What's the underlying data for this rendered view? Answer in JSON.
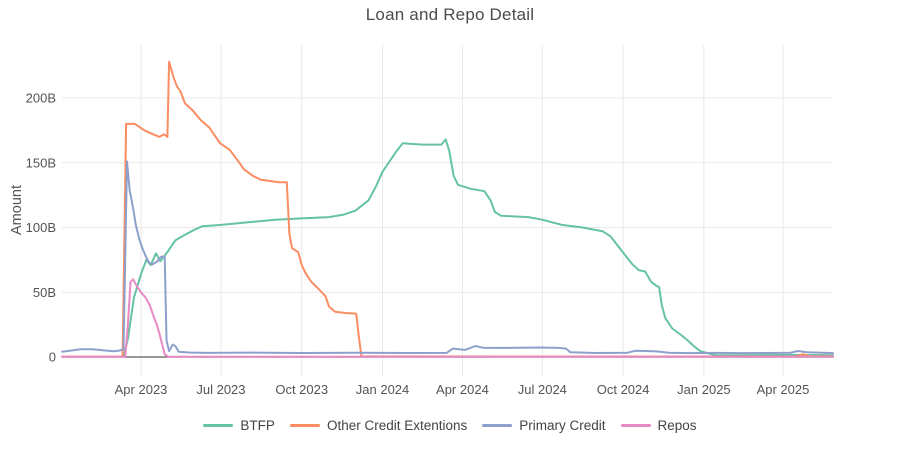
{
  "chart_data": {
    "type": "line",
    "title": "Loan and Repo Detail",
    "xlabel": "",
    "ylabel": "Amount",
    "legend_position": "bottom-center",
    "grid": true,
    "grid_color": "#e9e9e9",
    "zero_line_color": "#5a5a5a",
    "x_range": [
      "2023-01-01",
      "2025-05-28"
    ],
    "y_range": [
      0,
      240
    ],
    "y_ticks": [
      {
        "value": 0,
        "label": "0"
      },
      {
        "value": 50,
        "label": "50B"
      },
      {
        "value": 100,
        "label": "100B"
      },
      {
        "value": 150,
        "label": "150B"
      },
      {
        "value": 200,
        "label": "200B"
      }
    ],
    "x_ticks": [
      {
        "date": "2023-04-01",
        "label": "Apr 2023"
      },
      {
        "date": "2023-07-01",
        "label": "Jul 2023"
      },
      {
        "date": "2023-10-01",
        "label": "Oct 2023"
      },
      {
        "date": "2024-01-01",
        "label": "Jan 2024"
      },
      {
        "date": "2024-04-01",
        "label": "Apr 2024"
      },
      {
        "date": "2024-07-01",
        "label": "Jul 2024"
      },
      {
        "date": "2024-10-01",
        "label": "Oct 2024"
      },
      {
        "date": "2025-01-01",
        "label": "Jan 2025"
      },
      {
        "date": "2025-04-01",
        "label": "Apr 2025"
      }
    ],
    "series": [
      {
        "name": "BTFP",
        "color": "#66c2a5",
        "points": [
          [
            "2023-03-12",
            0
          ],
          [
            "2023-03-17",
            14
          ],
          [
            "2023-03-24",
            46
          ],
          [
            "2023-04-01",
            64
          ],
          [
            "2023-04-07",
            75
          ],
          [
            "2023-04-12",
            71
          ],
          [
            "2023-04-18",
            80
          ],
          [
            "2023-04-23",
            74
          ],
          [
            "2023-05-01",
            81
          ],
          [
            "2023-05-10",
            90
          ],
          [
            "2023-05-20",
            94
          ],
          [
            "2023-05-31",
            98
          ],
          [
            "2023-06-10",
            101
          ],
          [
            "2023-07-01",
            102
          ],
          [
            "2023-08-01",
            104
          ],
          [
            "2023-09-01",
            106
          ],
          [
            "2023-10-01",
            107
          ],
          [
            "2023-11-01",
            108
          ],
          [
            "2023-11-18",
            110
          ],
          [
            "2023-12-01",
            113
          ],
          [
            "2023-12-16",
            121
          ],
          [
            "2023-12-24",
            131
          ],
          [
            "2024-01-01",
            143
          ],
          [
            "2024-01-09",
            151
          ],
          [
            "2024-01-17",
            159
          ],
          [
            "2024-01-24",
            165
          ],
          [
            "2024-02-15",
            164
          ],
          [
            "2024-03-08",
            164
          ],
          [
            "2024-03-13",
            168
          ],
          [
            "2024-03-17",
            159
          ],
          [
            "2024-03-22",
            140
          ],
          [
            "2024-03-27",
            133
          ],
          [
            "2024-04-10",
            130
          ],
          [
            "2024-04-26",
            128
          ],
          [
            "2024-05-03",
            121
          ],
          [
            "2024-05-08",
            112
          ],
          [
            "2024-05-15",
            109
          ],
          [
            "2024-06-15",
            108
          ],
          [
            "2024-07-01",
            106
          ],
          [
            "2024-07-23",
            102
          ],
          [
            "2024-08-16",
            100
          ],
          [
            "2024-09-08",
            97
          ],
          [
            "2024-09-17",
            93
          ],
          [
            "2024-09-26",
            85
          ],
          [
            "2024-10-04",
            78
          ],
          [
            "2024-10-11",
            72
          ],
          [
            "2024-10-19",
            67
          ],
          [
            "2024-10-26",
            66
          ],
          [
            "2024-11-02",
            58
          ],
          [
            "2024-11-08",
            55
          ],
          [
            "2024-11-11",
            54
          ],
          [
            "2024-11-14",
            40
          ],
          [
            "2024-11-18",
            30
          ],
          [
            "2024-11-26",
            22
          ],
          [
            "2024-12-06",
            17
          ],
          [
            "2024-12-15",
            12
          ],
          [
            "2024-12-21",
            8
          ],
          [
            "2024-12-28",
            4.5
          ],
          [
            "2025-01-05",
            3
          ],
          [
            "2025-01-14",
            1.5
          ],
          [
            "2025-02-15",
            1.3
          ],
          [
            "2025-04-10",
            1.6
          ],
          [
            "2025-05-28",
            1.4
          ]
        ]
      },
      {
        "name": "Other Credit Extentions",
        "color": "#fc8d62",
        "points": [
          [
            "2023-01-01",
            0.3
          ],
          [
            "2023-03-11",
            0.3
          ],
          [
            "2023-03-15",
            180
          ],
          [
            "2023-03-25",
            180
          ],
          [
            "2023-04-05",
            175
          ],
          [
            "2023-04-15",
            172
          ],
          [
            "2023-04-22",
            170
          ],
          [
            "2023-04-27",
            172
          ],
          [
            "2023-05-01",
            170
          ],
          [
            "2023-05-03",
            228
          ],
          [
            "2023-05-08",
            216
          ],
          [
            "2023-05-12",
            209
          ],
          [
            "2023-05-16",
            205
          ],
          [
            "2023-05-21",
            196
          ],
          [
            "2023-05-29",
            191
          ],
          [
            "2023-06-08",
            183
          ],
          [
            "2023-06-18",
            177
          ],
          [
            "2023-06-30",
            165
          ],
          [
            "2023-07-11",
            160
          ],
          [
            "2023-07-22",
            150
          ],
          [
            "2023-07-27",
            145
          ],
          [
            "2023-08-06",
            140
          ],
          [
            "2023-08-15",
            137
          ],
          [
            "2023-09-05",
            135
          ],
          [
            "2023-09-14",
            135
          ],
          [
            "2023-09-17",
            95
          ],
          [
            "2023-09-20",
            84
          ],
          [
            "2023-09-27",
            81
          ],
          [
            "2023-10-01",
            71
          ],
          [
            "2023-10-06",
            64
          ],
          [
            "2023-10-12",
            58
          ],
          [
            "2023-10-18",
            54
          ],
          [
            "2023-10-28",
            47
          ],
          [
            "2023-11-01",
            39
          ],
          [
            "2023-11-08",
            35
          ],
          [
            "2023-11-20",
            34
          ],
          [
            "2023-12-02",
            33.5
          ],
          [
            "2023-12-05",
            16
          ],
          [
            "2023-12-08",
            0.5
          ],
          [
            "2024-06-01",
            0.4
          ],
          [
            "2025-04-15",
            0.4
          ],
          [
            "2025-04-24",
            2.2
          ],
          [
            "2025-05-02",
            0.5
          ],
          [
            "2025-05-28",
            0.5
          ]
        ]
      },
      {
        "name": "Primary Credit",
        "color": "#8da0cb",
        "points": [
          [
            "2023-01-01",
            4
          ],
          [
            "2023-01-12",
            5
          ],
          [
            "2023-01-22",
            6
          ],
          [
            "2023-02-05",
            6
          ],
          [
            "2023-02-19",
            5
          ],
          [
            "2023-03-01",
            4.5
          ],
          [
            "2023-03-08",
            5
          ],
          [
            "2023-03-12",
            6
          ],
          [
            "2023-03-16",
            151
          ],
          [
            "2023-03-19",
            129
          ],
          [
            "2023-03-23",
            115
          ],
          [
            "2023-03-26",
            102
          ],
          [
            "2023-03-30",
            91
          ],
          [
            "2023-04-03",
            83
          ],
          [
            "2023-04-07",
            77
          ],
          [
            "2023-04-10",
            73
          ],
          [
            "2023-04-14",
            71.5
          ],
          [
            "2023-04-19",
            73.5
          ],
          [
            "2023-04-24",
            77.5
          ],
          [
            "2023-04-28",
            77.5
          ],
          [
            "2023-04-30",
            13
          ],
          [
            "2023-05-03",
            4.5
          ],
          [
            "2023-05-07",
            9.5
          ],
          [
            "2023-05-10",
            8.5
          ],
          [
            "2023-05-14",
            4
          ],
          [
            "2023-05-25",
            3.5
          ],
          [
            "2023-06-15",
            3.2
          ],
          [
            "2023-08-01",
            3.4
          ],
          [
            "2023-10-01",
            3.1
          ],
          [
            "2023-12-01",
            3.3
          ],
          [
            "2024-02-01",
            3.1
          ],
          [
            "2024-03-14",
            3.2
          ],
          [
            "2024-03-21",
            6.5
          ],
          [
            "2024-04-04",
            5.5
          ],
          [
            "2024-04-16",
            8.5
          ],
          [
            "2024-04-24",
            7.2
          ],
          [
            "2024-05-15",
            7
          ],
          [
            "2024-06-28",
            7.3
          ],
          [
            "2024-07-20",
            7
          ],
          [
            "2024-07-28",
            6.5
          ],
          [
            "2024-08-02",
            3.6
          ],
          [
            "2024-09-01",
            3.1
          ],
          [
            "2024-10-06",
            3.3
          ],
          [
            "2024-10-15",
            4.8
          ],
          [
            "2024-11-08",
            4.3
          ],
          [
            "2024-11-22",
            3.3
          ],
          [
            "2024-12-15",
            3
          ],
          [
            "2025-01-15",
            3.2
          ],
          [
            "2025-02-15",
            3
          ],
          [
            "2025-03-15",
            3.1
          ],
          [
            "2025-04-10",
            3.3
          ],
          [
            "2025-04-18",
            4.6
          ],
          [
            "2025-04-28",
            3.6
          ],
          [
            "2025-05-28",
            3
          ]
        ]
      },
      {
        "name": "Repos",
        "color": "#e78ac3",
        "points": [
          [
            "2023-01-01",
            0.2
          ],
          [
            "2023-03-14",
            0.2
          ],
          [
            "2023-03-17",
            25
          ],
          [
            "2023-03-20",
            58
          ],
          [
            "2023-03-23",
            60
          ],
          [
            "2023-03-27",
            55
          ],
          [
            "2023-04-01",
            50
          ],
          [
            "2023-04-06",
            46
          ],
          [
            "2023-04-11",
            40
          ],
          [
            "2023-04-15",
            32
          ],
          [
            "2023-04-19",
            25
          ],
          [
            "2023-04-22",
            18
          ],
          [
            "2023-04-25",
            10
          ],
          [
            "2023-04-28",
            2
          ],
          [
            "2023-05-02",
            0.2
          ],
          [
            "2025-05-28",
            0.2
          ]
        ]
      }
    ]
  }
}
